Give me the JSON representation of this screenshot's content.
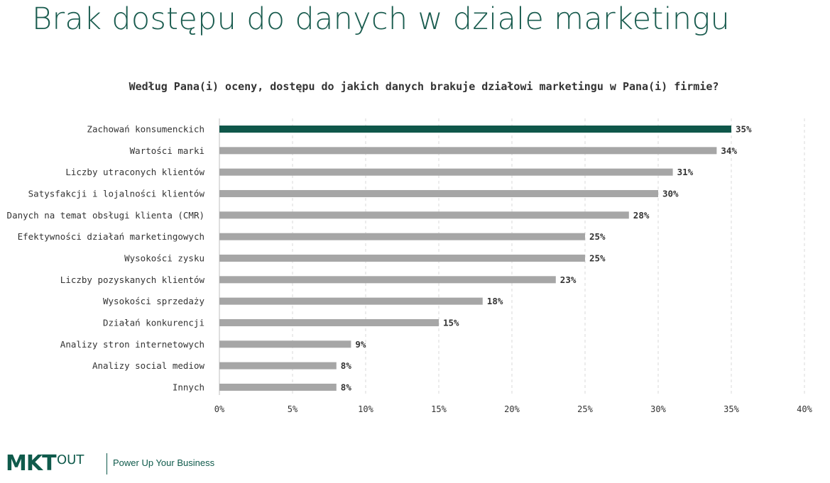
{
  "page": {
    "title": "Brak dostępu do danych w dziale marketingu"
  },
  "footer": {
    "logo_main": "MKT",
    "logo_sub": "OUT",
    "tagline": "Power Up Your Business"
  },
  "colors": {
    "highlight": "#0f574a",
    "bar": "#a6a6a6",
    "title": "#1a5c4f",
    "grid": "#d9d9d9"
  },
  "chart_data": {
    "type": "bar",
    "orientation": "horizontal",
    "title": "Według Pana(i) oceny, dostępu do jakich danych brakuje działowi marketingu w Pana(i) firmie?",
    "categories": [
      "Zachowań konsumenckich",
      "Wartości marki",
      "Liczby utraconych klientów",
      "Satysfakcji i lojalności klientów",
      "Danych na temat obsługi klienta (CMR)",
      "Efektywności działań marketingowych",
      "Wysokości zysku",
      "Liczby pozyskanych klientów",
      "Wysokości sprzedaży",
      "Działań konkurencji",
      "Analizy stron internetowych",
      "Analizy social mediow",
      "Innych"
    ],
    "values": [
      35,
      34,
      31,
      30,
      28,
      25,
      25,
      23,
      18,
      15,
      9,
      8,
      8
    ],
    "value_labels": [
      "35%",
      "34%",
      "31%",
      "30%",
      "28%",
      "25%",
      "25%",
      "23%",
      "18%",
      "15%",
      "9%",
      "8%",
      "8%"
    ],
    "highlighted_index": 0,
    "xlim": [
      0,
      40
    ],
    "xticks": [
      0,
      5,
      10,
      15,
      20,
      25,
      30,
      35,
      40
    ],
    "xtick_labels": [
      "0%",
      "5%",
      "10%",
      "15%",
      "20%",
      "25%",
      "30%",
      "35%",
      "40%"
    ],
    "grid": true
  }
}
